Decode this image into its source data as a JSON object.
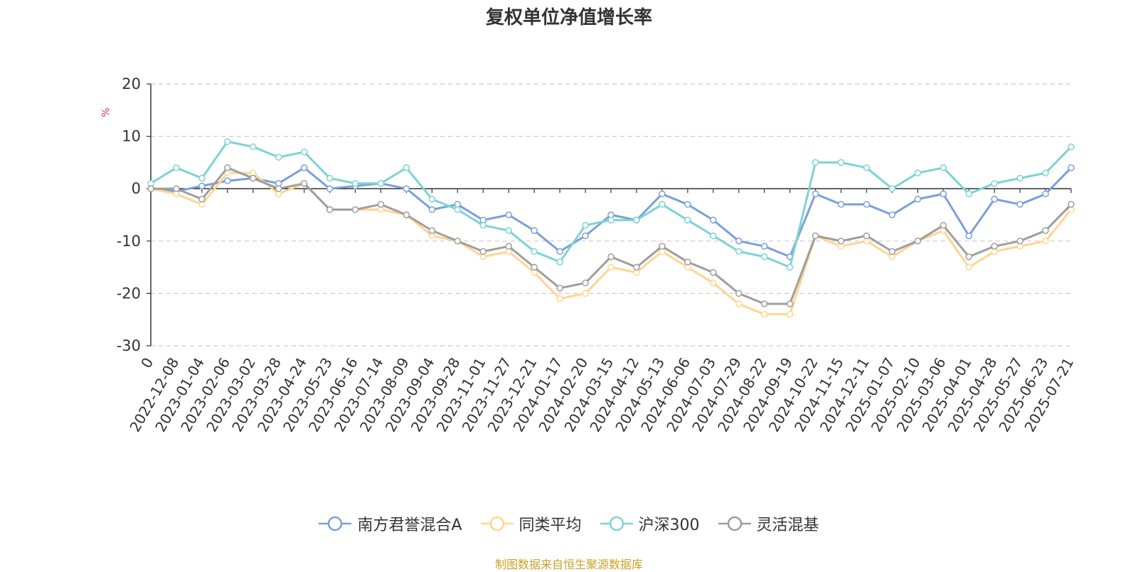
{
  "title": "复权单位净值增长率",
  "source_note": "制图数据来自恒生聚源数据库",
  "chart_data": {
    "type": "line",
    "title": "复权单位净值增长率",
    "ylabel": "%",
    "ylim": [
      -30,
      20
    ],
    "yticks": [
      20,
      10,
      0,
      -10,
      -20,
      -30
    ],
    "grid": true,
    "legend_position": "bottom-center",
    "x": [
      "0",
      "2022-12-08",
      "2023-01-04",
      "2023-02-06",
      "2023-03-02",
      "2023-03-28",
      "2023-04-24",
      "2023-05-23",
      "2023-06-16",
      "2023-07-14",
      "2023-08-09",
      "2023-09-04",
      "2023-09-28",
      "2023-11-01",
      "2023-11-27",
      "2023-12-21",
      "2024-01-17",
      "2024-02-20",
      "2024-03-15",
      "2024-04-12",
      "2024-05-13",
      "2024-06-06",
      "2024-07-03",
      "2024-07-29",
      "2024-08-22",
      "2024-09-19",
      "2024-10-22",
      "2024-11-15",
      "2024-12-11",
      "2025-01-07",
      "2025-02-10",
      "2025-03-06",
      "2025-04-01",
      "2025-04-28",
      "2025-05-27",
      "2025-06-23",
      "2025-07-21"
    ],
    "series": [
      {
        "name": "南方君誉混合A",
        "color": "#7b9fd9",
        "values": [
          0,
          -0.5,
          0.5,
          1.5,
          2,
          1,
          4,
          0,
          0.5,
          1,
          0,
          -4,
          -3,
          -6,
          -5,
          -8,
          -12,
          -9,
          -5,
          -6,
          -1,
          -3,
          -6,
          -10,
          -11,
          -13,
          -1,
          -3,
          -3,
          -5,
          -2,
          -1,
          -9,
          -2,
          -3,
          -1,
          4
        ]
      },
      {
        "name": "同类平均",
        "color": "#ffd591",
        "values": [
          0,
          -1,
          -3,
          3,
          3,
          -1,
          1,
          -4,
          -4,
          -4,
          -5,
          -9,
          -10,
          -13,
          -12,
          -16,
          -21,
          -20,
          -15,
          -16,
          -12,
          -15,
          -18,
          -22,
          -24,
          -24,
          -9,
          -11,
          -10,
          -13,
          -10,
          -8,
          -15,
          -12,
          -11,
          -10,
          -4
        ]
      },
      {
        "name": "沪深300",
        "color": "#7dd3d4",
        "values": [
          1,
          4,
          2,
          9,
          8,
          6,
          7,
          2,
          1,
          1,
          4,
          -2,
          -4,
          -7,
          -8,
          -12,
          -14,
          -7,
          -6,
          -6,
          -3,
          -6,
          -9,
          -12,
          -13,
          -15,
          5,
          5,
          4,
          0,
          3,
          4,
          -1,
          1,
          2,
          3,
          8
        ]
      },
      {
        "name": "灵活混基",
        "color": "#9e9e9e",
        "values": [
          0,
          0,
          -2,
          4,
          2,
          0,
          1,
          -4,
          -4,
          -3,
          -5,
          -8,
          -10,
          -12,
          -11,
          -15,
          -19,
          -18,
          -13,
          -15,
          -11,
          -14,
          -16,
          -20,
          -22,
          -22,
          -9,
          -10,
          -9,
          -12,
          -10,
          -7,
          -13,
          -11,
          -10,
          -8,
          -3
        ]
      }
    ]
  }
}
